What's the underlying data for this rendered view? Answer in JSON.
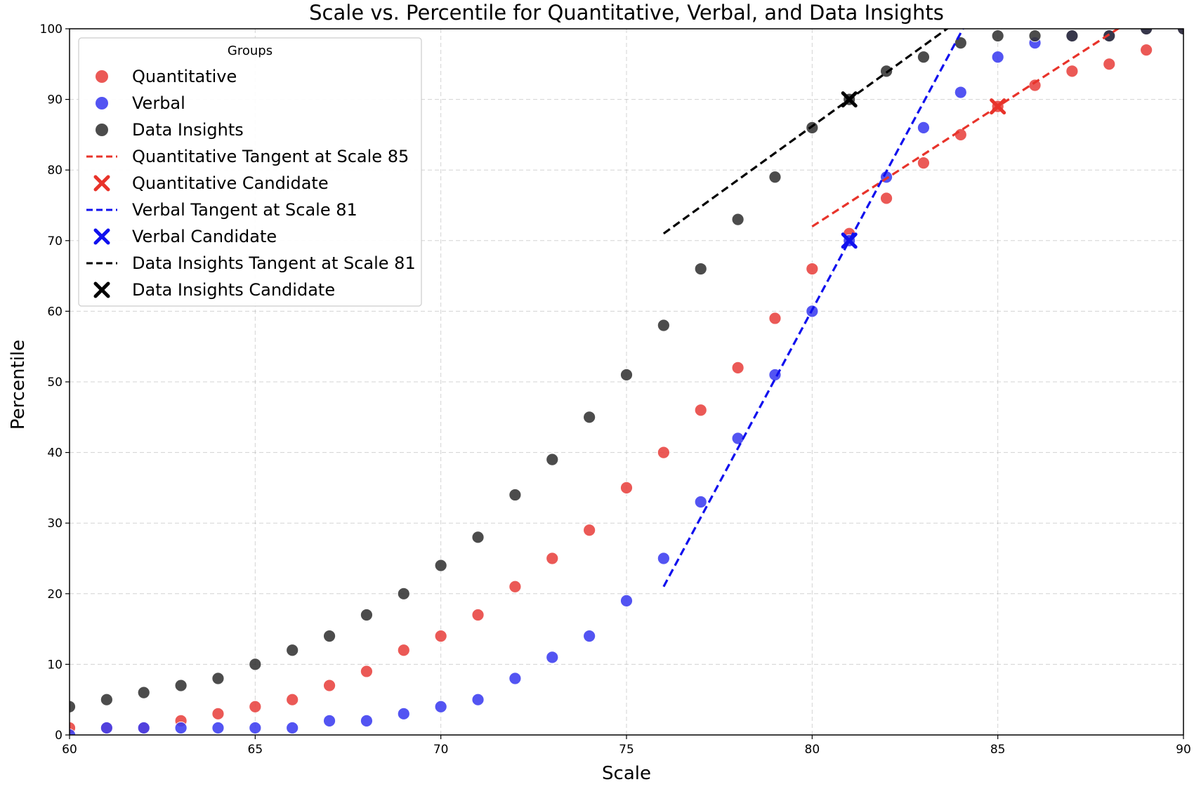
{
  "chart_data": {
    "type": "scatter",
    "title": "Scale vs. Percentile for Quantitative, Verbal, and Data Insights",
    "xlabel": "Scale",
    "ylabel": "Percentile",
    "xlim": [
      60,
      90
    ],
    "ylim": [
      0,
      100
    ],
    "xticks": [
      "60",
      "65",
      "70",
      "75",
      "80",
      "85",
      "90"
    ],
    "yticks": [
      "0",
      "10",
      "20",
      "30",
      "40",
      "50",
      "60",
      "70",
      "80",
      "90",
      "100"
    ],
    "grid": true,
    "legend": {
      "title": "Groups",
      "position": "top-left",
      "entries": [
        {
          "label": "Quantitative",
          "marker": "dot",
          "color": "#e8423f"
        },
        {
          "label": "Verbal",
          "marker": "dot",
          "color": "#3b3cf0"
        },
        {
          "label": "Data Insights",
          "marker": "dot",
          "color": "#333333"
        },
        {
          "label": "Quantitative Tangent at Scale 85",
          "marker": "dash",
          "color": "#e8332a"
        },
        {
          "label": "Quantitative Candidate",
          "marker": "x",
          "color": "#e8332a"
        },
        {
          "label": "Verbal Tangent at Scale 81",
          "marker": "dash",
          "color": "#1010ee"
        },
        {
          "label": "Verbal Candidate",
          "marker": "x",
          "color": "#1010ee"
        },
        {
          "label": "Data Insights Tangent at Scale 81",
          "marker": "dash",
          "color": "#000000"
        },
        {
          "label": "Data Insights Candidate",
          "marker": "x",
          "color": "#000000"
        }
      ]
    },
    "x": [
      60,
      61,
      62,
      63,
      64,
      65,
      66,
      67,
      68,
      69,
      70,
      71,
      72,
      73,
      74,
      75,
      76,
      77,
      78,
      79,
      80,
      81,
      82,
      83,
      84,
      85,
      86,
      87,
      88,
      89,
      90
    ],
    "series": [
      {
        "name": "Quantitative",
        "color": "#e8423f",
        "values": [
          1,
          1,
          1,
          2,
          3,
          4,
          5,
          7,
          9,
          12,
          14,
          17,
          21,
          25,
          29,
          35,
          40,
          46,
          52,
          59,
          66,
          71,
          76,
          81,
          85,
          89,
          92,
          94,
          95,
          97,
          100
        ]
      },
      {
        "name": "Verbal",
        "color": "#3b3cf0",
        "values": [
          0,
          1,
          1,
          1,
          1,
          1,
          1,
          2,
          2,
          3,
          4,
          5,
          8,
          11,
          14,
          19,
          25,
          33,
          42,
          51,
          60,
          70,
          79,
          86,
          91,
          96,
          98,
          99,
          99,
          100,
          100
        ]
      },
      {
        "name": "Data Insights",
        "color": "#333333",
        "values": [
          4,
          5,
          6,
          7,
          8,
          10,
          12,
          14,
          17,
          20,
          24,
          28,
          34,
          39,
          45,
          51,
          58,
          66,
          73,
          79,
          86,
          90,
          94,
          96,
          98,
          99,
          99,
          99,
          99,
          100,
          100
        ]
      }
    ],
    "tangents": [
      {
        "name": "Quantitative Tangent at Scale 85",
        "color": "#e8332a",
        "x": [
          80,
          90
        ],
        "y": [
          72,
          106
        ]
      },
      {
        "name": "Verbal Tangent at Scale 81",
        "color": "#1010ee",
        "x": [
          76,
          86
        ],
        "y": [
          21,
          119
        ]
      },
      {
        "name": "Data Insights Tangent at Scale 81",
        "color": "#000000",
        "x": [
          76,
          86
        ],
        "y": [
          71,
          109
        ]
      }
    ],
    "candidates": [
      {
        "name": "Quantitative Candidate",
        "color": "#e8332a",
        "x": 85,
        "y": 89
      },
      {
        "name": "Verbal Candidate",
        "color": "#1010ee",
        "x": 81,
        "y": 70
      },
      {
        "name": "Data Insights Candidate",
        "color": "#000000",
        "x": 81,
        "y": 90
      }
    ]
  }
}
